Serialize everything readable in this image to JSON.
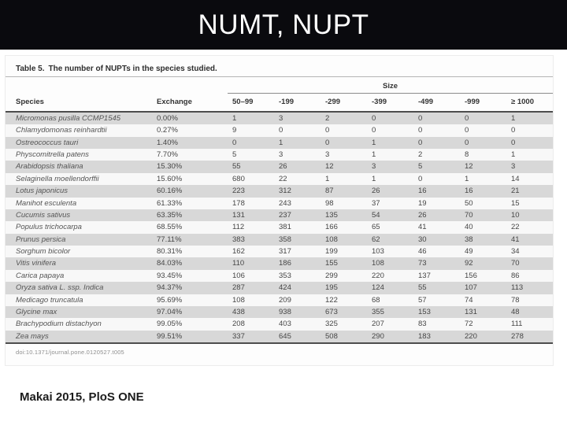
{
  "slide": {
    "title": "NUMT, NUPT",
    "citation": "Makai 2015, PloS ONE"
  },
  "figure": {
    "caption_label": "Table 5.",
    "caption_text": "The number of NUPTs in the species studied.",
    "doi": "doi:10.1371/journal.pone.0120527.t005"
  },
  "chart_data": {
    "type": "table",
    "title": "Table 5. The number of NUPTs in the species studied.",
    "group_header": {
      "label": "Size",
      "spans_columns": [
        "50–99",
        "-199",
        "-299",
        "-399",
        "-499",
        "-999",
        "≥ 1000"
      ]
    },
    "columns": [
      "Species",
      "Exchange",
      "50–99",
      "-199",
      "-299",
      "-399",
      "-499",
      "-999",
      "≥ 1000"
    ],
    "rows": [
      [
        "Micromonas pusilla CCMP1545",
        "0.00%",
        "1",
        "3",
        "2",
        "0",
        "0",
        "0",
        "1"
      ],
      [
        "Chlamydomonas reinhardtii",
        "0.27%",
        "9",
        "0",
        "0",
        "0",
        "0",
        "0",
        "0"
      ],
      [
        "Ostreococcus tauri",
        "1.40%",
        "0",
        "1",
        "0",
        "1",
        "0",
        "0",
        "0"
      ],
      [
        "Physcomitrella patens",
        "7.70%",
        "5",
        "3",
        "3",
        "1",
        "2",
        "8",
        "1"
      ],
      [
        "Arabidopsis thaliana",
        "15.30%",
        "55",
        "26",
        "12",
        "3",
        "5",
        "12",
        "3"
      ],
      [
        "Selaginella moellendorffii",
        "15.60%",
        "680",
        "22",
        "1",
        "1",
        "0",
        "1",
        "14"
      ],
      [
        "Lotus japonicus",
        "60.16%",
        "223",
        "312",
        "87",
        "26",
        "16",
        "16",
        "21"
      ],
      [
        "Manihot esculenta",
        "61.33%",
        "178",
        "243",
        "98",
        "37",
        "19",
        "50",
        "15"
      ],
      [
        "Cucumis sativus",
        "63.35%",
        "131",
        "237",
        "135",
        "54",
        "26",
        "70",
        "10"
      ],
      [
        "Populus trichocarpa",
        "68.55%",
        "112",
        "381",
        "166",
        "65",
        "41",
        "40",
        "22"
      ],
      [
        "Prunus persica",
        "77.11%",
        "383",
        "358",
        "108",
        "62",
        "30",
        "38",
        "41"
      ],
      [
        "Sorghum bicolor",
        "80.31%",
        "162",
        "317",
        "199",
        "103",
        "46",
        "49",
        "34"
      ],
      [
        "Vitis vinifera",
        "84.03%",
        "110",
        "186",
        "155",
        "108",
        "73",
        "92",
        "70"
      ],
      [
        "Carica papaya",
        "93.45%",
        "106",
        "353",
        "299",
        "220",
        "137",
        "156",
        "86"
      ],
      [
        "Oryza sativa L. ssp. Indica",
        "94.37%",
        "287",
        "424",
        "195",
        "124",
        "55",
        "107",
        "113"
      ],
      [
        "Medicago truncatula",
        "95.69%",
        "108",
        "209",
        "122",
        "68",
        "57",
        "74",
        "78"
      ],
      [
        "Glycine max",
        "97.04%",
        "438",
        "938",
        "673",
        "355",
        "153",
        "131",
        "48"
      ],
      [
        "Brachypodium distachyon",
        "99.05%",
        "208",
        "403",
        "325",
        "207",
        "83",
        "72",
        "111"
      ],
      [
        "Zea mays",
        "99.51%",
        "337",
        "645",
        "508",
        "290",
        "183",
        "220",
        "278"
      ]
    ]
  }
}
